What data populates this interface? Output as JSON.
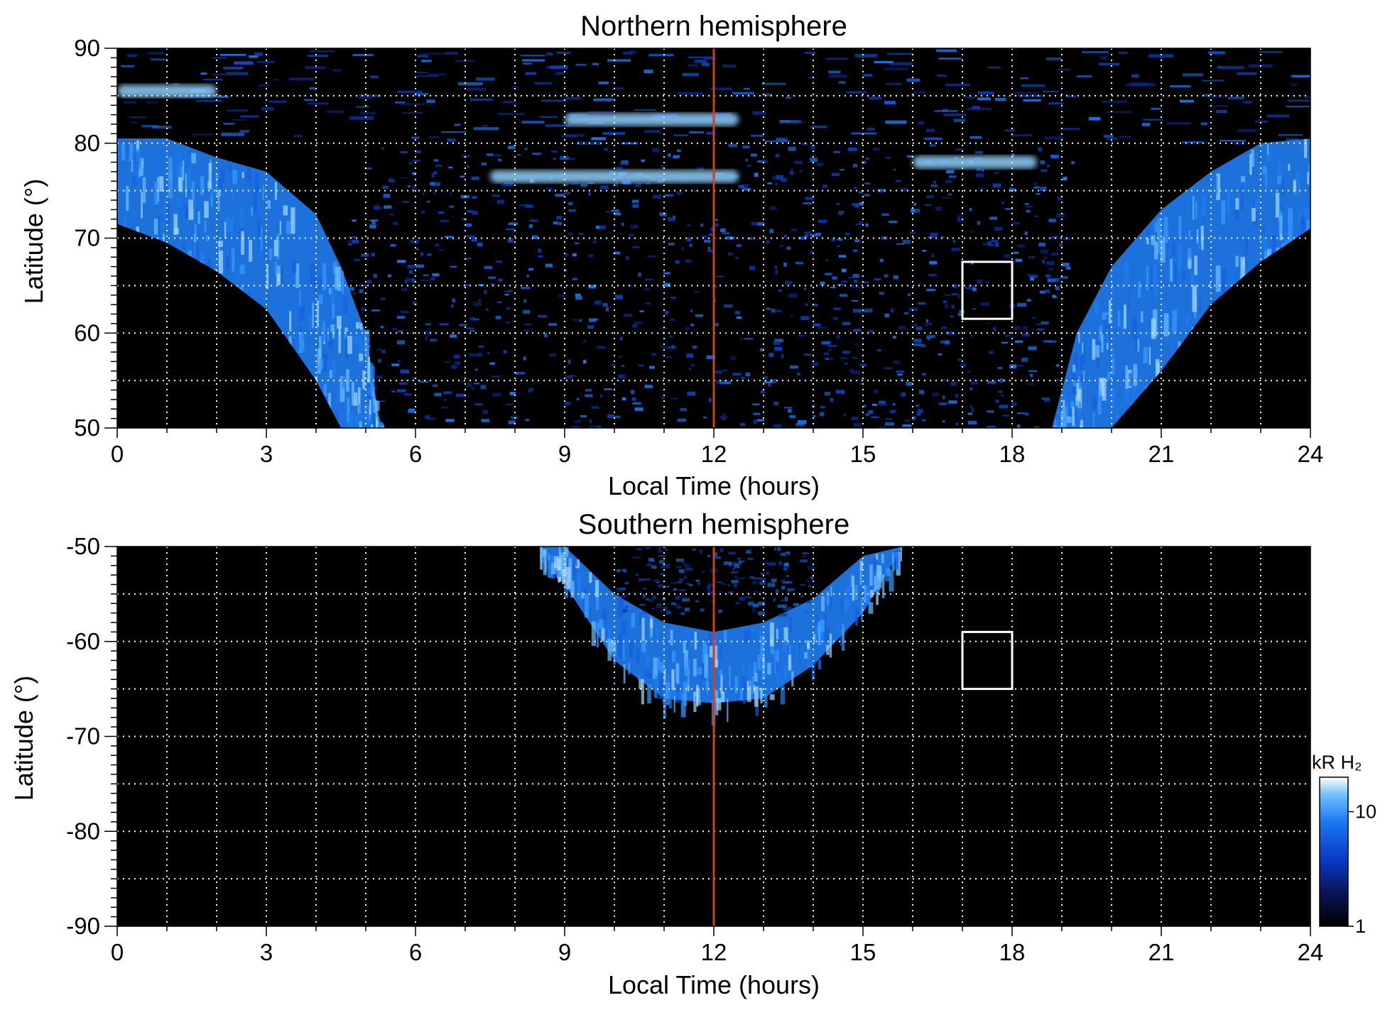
{
  "chart_data": [
    {
      "type": "heatmap",
      "title": "Northern hemisphere",
      "xlabel": "Local Time (hours)",
      "ylabel": "Latitude (°)",
      "xlim": [
        0,
        24
      ],
      "ylim": [
        50,
        90
      ],
      "x_ticks": [
        0,
        3,
        6,
        9,
        12,
        15,
        18,
        21,
        24
      ],
      "x_tick_labels": [
        "0",
        "3",
        "6",
        "9",
        "12",
        "15",
        "18",
        "21",
        "24"
      ],
      "y_ticks": [
        50,
        60,
        70,
        80,
        90
      ],
      "y_tick_labels": [
        "50",
        "60",
        "70",
        "80",
        "90"
      ],
      "grid": true,
      "grid_x_step_hours": 1,
      "grid_y_step_deg": 5,
      "reference_line": {
        "x": 12,
        "color": "#d1401c"
      },
      "highlight_box": {
        "x": [
          17,
          18
        ],
        "y": [
          61.5,
          67.5
        ],
        "color": "#ffffff"
      },
      "background": "#000000",
      "auroral_oval": [
        {
          "x": 0.0,
          "lat_pole": 80.5,
          "lat_eq": 71.5
        },
        {
          "x": 1.0,
          "lat_pole": 80.5,
          "lat_eq": 69.5
        },
        {
          "x": 2.0,
          "lat_pole": 78.5,
          "lat_eq": 66.5
        },
        {
          "x": 3.0,
          "lat_pole": 77.0,
          "lat_eq": 62.5
        },
        {
          "x": 4.0,
          "lat_pole": 72.5,
          "lat_eq": 55.0
        },
        {
          "x": 4.5,
          "lat_pole": 67.0,
          "lat_eq": 50.0
        },
        {
          "x": 5.0,
          "lat_pole": 60.0,
          "lat_eq": 50.0
        },
        {
          "x": 5.3,
          "lat_pole": 50.0,
          "lat_eq": 50.0
        }
      ],
      "auroral_oval_dusk": [
        {
          "x": 18.8,
          "lat_pole": 50.0,
          "lat_eq": 50.0
        },
        {
          "x": 19.3,
          "lat_pole": 60.0,
          "lat_eq": 50.0
        },
        {
          "x": 20.0,
          "lat_pole": 67.0,
          "lat_eq": 50.0
        },
        {
          "x": 21.0,
          "lat_pole": 73.0,
          "lat_eq": 56.0
        },
        {
          "x": 22.0,
          "lat_pole": 77.0,
          "lat_eq": 63.0
        },
        {
          "x": 23.0,
          "lat_pole": 80.0,
          "lat_eq": 67.5
        },
        {
          "x": 24.0,
          "lat_pole": 80.5,
          "lat_eq": 71.0
        }
      ],
      "bright_arcs": [
        {
          "x": [
            7.5,
            12.5
          ],
          "y": 76.5
        },
        {
          "x": [
            9.0,
            12.5
          ],
          "y": 82.5
        },
        {
          "x": [
            16.0,
            18.5
          ],
          "y": 78.0
        },
        {
          "x": [
            0.0,
            2.0
          ],
          "y": 85.5
        }
      ]
    },
    {
      "type": "heatmap",
      "title": "Southern hemisphere",
      "xlabel": "Local Time (hours)",
      "ylabel": "Latitude (°)",
      "xlim": [
        0,
        24
      ],
      "ylim": [
        -90,
        -50
      ],
      "x_ticks": [
        0,
        3,
        6,
        9,
        12,
        15,
        18,
        21,
        24
      ],
      "x_tick_labels": [
        "0",
        "3",
        "6",
        "9",
        "12",
        "15",
        "18",
        "21",
        "24"
      ],
      "y_ticks": [
        -90,
        -80,
        -70,
        -60,
        -50
      ],
      "y_tick_labels": [
        "-90",
        "-80",
        "-70",
        "-60",
        "-50"
      ],
      "grid": true,
      "grid_x_step_hours": 1,
      "grid_y_step_deg": 5,
      "reference_line": {
        "x": 12,
        "color": "#d1401c"
      },
      "highlight_box": {
        "x": [
          17,
          18
        ],
        "y": [
          -65.0,
          -59.0
        ],
        "color": "#ffffff"
      },
      "background": "#000000",
      "auroral_oval": [
        {
          "x": 8.5,
          "lat_inner": -50.0,
          "lat_outer": -50.0
        },
        {
          "x": 9.0,
          "lat_inner": -50.0,
          "lat_outer": -54.0
        },
        {
          "x": 10.0,
          "lat_inner": -55.0,
          "lat_outer": -62.0
        },
        {
          "x": 11.0,
          "lat_inner": -58.0,
          "lat_outer": -66.0
        },
        {
          "x": 12.0,
          "lat_inner": -59.0,
          "lat_outer": -66.5
        },
        {
          "x": 13.0,
          "lat_inner": -58.0,
          "lat_outer": -66.0
        },
        {
          "x": 14.0,
          "lat_inner": -55.5,
          "lat_outer": -62.5
        },
        {
          "x": 15.0,
          "lat_inner": -51.0,
          "lat_outer": -57.0
        },
        {
          "x": 15.8,
          "lat_inner": -50.0,
          "lat_outer": -50.0
        }
      ]
    }
  ],
  "colorbar": {
    "label": "kR H₂",
    "scale": "log",
    "range": [
      1,
      20
    ],
    "ticks": [
      1,
      10
    ],
    "tick_labels": [
      "1",
      "10"
    ],
    "colors": [
      "#000000",
      "#08124a",
      "#0a38c8",
      "#1a78f0",
      "#6fc0ff",
      "#ffffff"
    ]
  }
}
